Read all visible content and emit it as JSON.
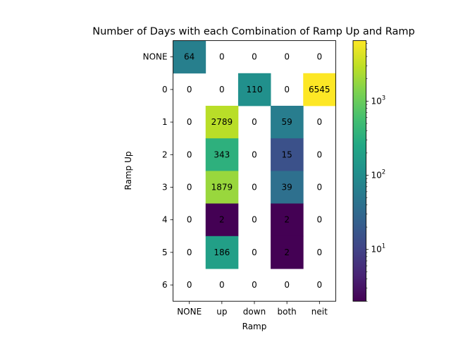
{
  "chart_data": {
    "type": "heatmap",
    "title": "Number of Days with each Combination of Ramp Up and Ramp",
    "xlabel": "Ramp",
    "ylabel": "Ramp Up",
    "x_categories": [
      "NONE",
      "up",
      "down",
      "both",
      "neit"
    ],
    "y_categories": [
      "NONE",
      "0",
      "1",
      "2",
      "3",
      "4",
      "5",
      "6"
    ],
    "values": [
      [
        64,
        0,
        0,
        0,
        0
      ],
      [
        0,
        0,
        110,
        0,
        6545
      ],
      [
        0,
        2789,
        0,
        59,
        0
      ],
      [
        0,
        343,
        0,
        15,
        0
      ],
      [
        0,
        1879,
        0,
        39,
        0
      ],
      [
        0,
        2,
        0,
        2,
        0
      ],
      [
        0,
        186,
        0,
        2,
        0
      ],
      [
        0,
        0,
        0,
        0,
        0
      ]
    ],
    "color_scale": "log",
    "colormap": "viridis",
    "color_range": [
      2,
      6545
    ],
    "colorbar_ticks": [
      "10^1",
      "10^2",
      "10^3"
    ],
    "zero_cells": "blank"
  }
}
